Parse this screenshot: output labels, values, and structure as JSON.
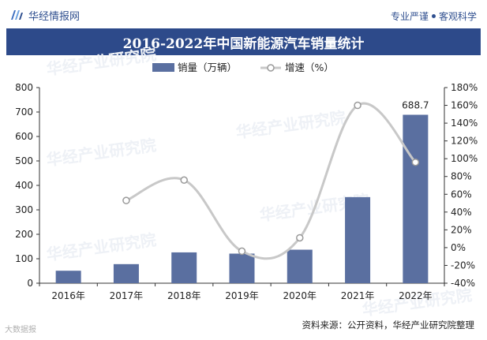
{
  "header": {
    "brand": "华经情报网",
    "tagline_left": "专业严谨",
    "tagline_right": "客观科学"
  },
  "source_note": "资料来源：公开资料，华经产业研究院整理",
  "bottom_logo": "大数据报",
  "watermark": "华经产业研究院",
  "chart_data": {
    "type": "bar+line",
    "title": "2016-2022年中国新能源汽车销量统计",
    "categories": [
      "2016年",
      "2017年",
      "2018年",
      "2019年",
      "2020年",
      "2021年",
      "2022年"
    ],
    "series": [
      {
        "name": "销量（万辆）",
        "type": "bar",
        "axis": "left",
        "color": "#5a6fa0",
        "values": [
          51,
          78,
          126,
          121,
          137,
          352,
          688.7
        ]
      },
      {
        "name": "增速（%）",
        "type": "line",
        "axis": "right",
        "color": "#c8c8c8",
        "values": [
          null,
          53,
          76,
          -4,
          11,
          160,
          96
        ]
      }
    ],
    "data_labels": [
      {
        "category": "2022年",
        "series": "销量（万辆）",
        "text": "688.7"
      }
    ],
    "y_left": {
      "min": 0,
      "max": 800,
      "ticks": [
        "0",
        "100",
        "200",
        "300",
        "400",
        "500",
        "600",
        "700",
        "800"
      ]
    },
    "y_right": {
      "min": -40,
      "max": 180,
      "ticks": [
        "-40%",
        "-20%",
        "0%",
        "20%",
        "40%",
        "60%",
        "80%",
        "100%",
        "120%",
        "140%",
        "160%",
        "180%"
      ]
    },
    "legend_position": "top-center",
    "grid": false
  }
}
